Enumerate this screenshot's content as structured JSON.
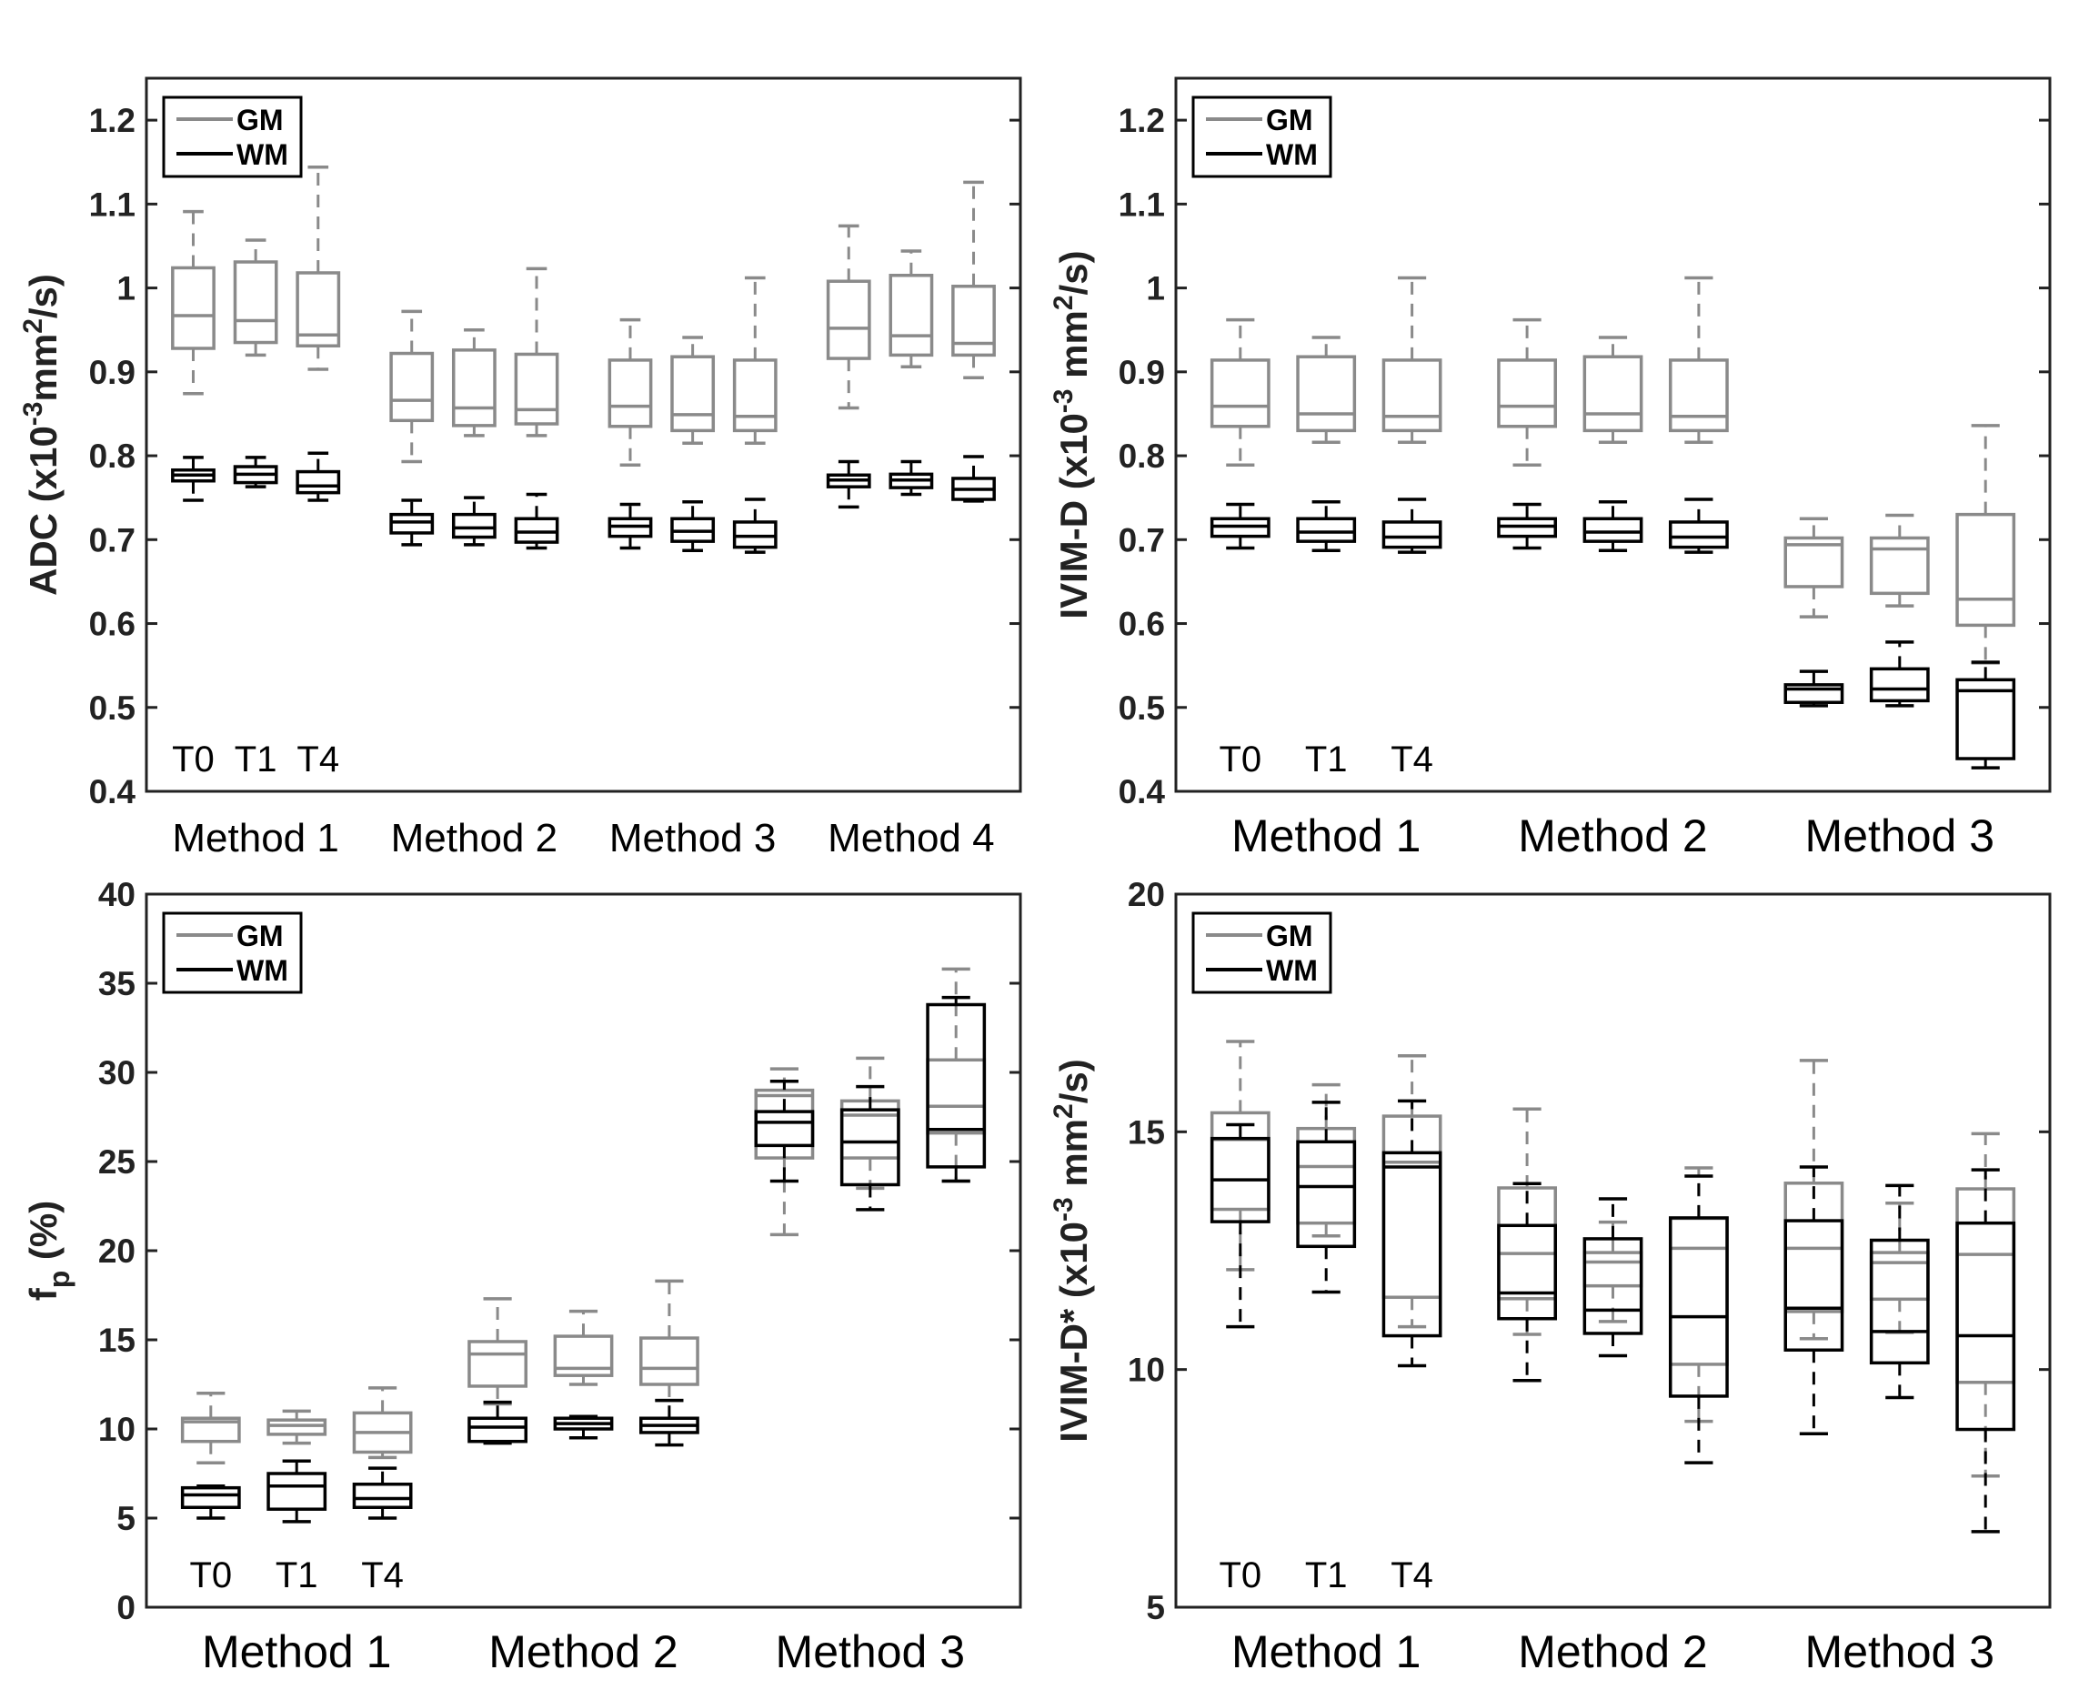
{
  "colors": {
    "GM": "#8a8a8a",
    "WM": "#000000",
    "axis": "#222222"
  },
  "chart_data": [
    {
      "type": "box",
      "ylabel": {
        "main": "ADC (x10",
        "sup1": "-3",
        "mid": "mm",
        "sup2": "2",
        "end": "/s)"
      },
      "ylim": [
        0.4,
        1.25
      ],
      "yticks": [
        0.4,
        0.5,
        0.6,
        0.7,
        0.8,
        0.9,
        1,
        1.1,
        1.2
      ],
      "ytick_labels": [
        "0.4",
        "0.5",
        "0.6",
        "0.7",
        "0.8",
        "0.9",
        "1",
        "1.1",
        "1.2"
      ],
      "categories": [
        "Method 1",
        "Method 2",
        "Method 3",
        "Method 4"
      ],
      "timepoints": [
        "T0",
        "T1",
        "T4"
      ],
      "legend": {
        "position": "top-left",
        "entries": [
          "GM",
          "WM"
        ]
      },
      "series": [
        {
          "name": "GM",
          "boxes": [
            [
              [
                0.874,
                0.928,
                0.967,
                1.024,
                1.091
              ],
              [
                0.92,
                0.935,
                0.961,
                1.031,
                1.057
              ],
              [
                0.903,
                0.931,
                0.944,
                1.018,
                1.144
              ]
            ],
            [
              [
                0.793,
                0.842,
                0.866,
                0.922,
                0.972
              ],
              [
                0.824,
                0.836,
                0.857,
                0.926,
                0.95
              ],
              [
                0.824,
                0.838,
                0.855,
                0.921,
                1.023
              ]
            ],
            [
              [
                0.789,
                0.835,
                0.859,
                0.914,
                0.962
              ],
              [
                0.815,
                0.83,
                0.849,
                0.918,
                0.941
              ],
              [
                0.815,
                0.83,
                0.847,
                0.914,
                1.012
              ]
            ],
            [
              [
                0.857,
                0.916,
                0.952,
                1.008,
                1.074
              ],
              [
                0.906,
                0.92,
                0.943,
                1.015,
                1.044
              ],
              [
                0.893,
                0.92,
                0.934,
                1.002,
                1.126
              ]
            ]
          ]
        },
        {
          "name": "WM",
          "boxes": [
            [
              [
                0.747,
                0.77,
                0.777,
                0.783,
                0.798
              ],
              [
                0.763,
                0.768,
                0.778,
                0.787,
                0.798
              ],
              [
                0.747,
                0.756,
                0.764,
                0.781,
                0.803
              ]
            ],
            [
              [
                0.694,
                0.708,
                0.721,
                0.73,
                0.747
              ],
              [
                0.694,
                0.703,
                0.714,
                0.73,
                0.75
              ],
              [
                0.69,
                0.697,
                0.709,
                0.725,
                0.754
              ]
            ],
            [
              [
                0.69,
                0.704,
                0.716,
                0.725,
                0.742
              ],
              [
                0.687,
                0.698,
                0.71,
                0.725,
                0.745
              ],
              [
                0.685,
                0.691,
                0.704,
                0.721,
                0.748
              ]
            ],
            [
              [
                0.739,
                0.763,
                0.771,
                0.777,
                0.793
              ],
              [
                0.754,
                0.762,
                0.771,
                0.778,
                0.793
              ],
              [
                0.746,
                0.748,
                0.76,
                0.773,
                0.799
              ]
            ]
          ]
        }
      ]
    },
    {
      "type": "box",
      "ylabel": {
        "main": "IVIM-D (x10",
        "sup1": "-3",
        "mid": " mm",
        "sup2": "2",
        "end": "/s)"
      },
      "ylim": [
        0.4,
        1.25
      ],
      "yticks": [
        0.4,
        0.5,
        0.6,
        0.7,
        0.8,
        0.9,
        1,
        1.1,
        1.2
      ],
      "ytick_labels": [
        "0.4",
        "0.5",
        "0.6",
        "0.7",
        "0.8",
        "0.9",
        "1",
        "1.1",
        "1.2"
      ],
      "categories": [
        "Method 1",
        "Method 2",
        "Method 3"
      ],
      "timepoints": [
        "T0",
        "T1",
        "T4"
      ],
      "legend": {
        "position": "top-left",
        "entries": [
          "GM",
          "WM"
        ]
      },
      "series": [
        {
          "name": "GM",
          "boxes": [
            [
              [
                0.789,
                0.835,
                0.859,
                0.914,
                0.962
              ],
              [
                0.816,
                0.83,
                0.85,
                0.918,
                0.941
              ],
              [
                0.816,
                0.83,
                0.847,
                0.914,
                1.012
              ]
            ],
            [
              [
                0.789,
                0.835,
                0.859,
                0.914,
                0.962
              ],
              [
                0.816,
                0.83,
                0.85,
                0.918,
                0.941
              ],
              [
                0.816,
                0.83,
                0.847,
                0.914,
                1.012
              ]
            ],
            [
              [
                0.608,
                0.644,
                0.694,
                0.702,
                0.725
              ],
              [
                0.621,
                0.636,
                0.689,
                0.702,
                0.729
              ],
              [
                0.553,
                0.598,
                0.629,
                0.73,
                0.836
              ]
            ]
          ]
        },
        {
          "name": "WM",
          "boxes": [
            [
              [
                0.69,
                0.704,
                0.716,
                0.725,
                0.742
              ],
              [
                0.687,
                0.698,
                0.709,
                0.725,
                0.745
              ],
              [
                0.685,
                0.691,
                0.703,
                0.721,
                0.748
              ]
            ],
            [
              [
                0.69,
                0.704,
                0.716,
                0.725,
                0.742
              ],
              [
                0.687,
                0.698,
                0.709,
                0.725,
                0.745
              ],
              [
                0.685,
                0.691,
                0.703,
                0.721,
                0.748
              ]
            ],
            [
              [
                0.502,
                0.506,
                0.522,
                0.527,
                0.543
              ],
              [
                0.502,
                0.508,
                0.522,
                0.546,
                0.578
              ],
              [
                0.428,
                0.439,
                0.52,
                0.533,
                0.554
              ]
            ]
          ]
        }
      ]
    },
    {
      "type": "box",
      "ylabel": {
        "main": "f",
        "sub": "p",
        "end": " (%)"
      },
      "ylim": [
        0,
        40
      ],
      "yticks": [
        0,
        5,
        10,
        15,
        20,
        25,
        30,
        35,
        40
      ],
      "ytick_labels": [
        "0",
        "5",
        "10",
        "15",
        "20",
        "25",
        "30",
        "35",
        "40"
      ],
      "categories": [
        "Method 1",
        "Method 2",
        "Method 3"
      ],
      "timepoints": [
        "T0",
        "T1",
        "T4"
      ],
      "legend": {
        "position": "top-left",
        "entries": [
          "GM",
          "WM"
        ]
      },
      "series": [
        {
          "name": "GM",
          "boxes": [
            [
              [
                8.1,
                9.3,
                10.4,
                10.6,
                12.0
              ],
              [
                9.2,
                9.7,
                10.2,
                10.5,
                11.0
              ],
              [
                8.4,
                8.7,
                9.8,
                10.9,
                12.3
              ]
            ],
            [
              [
                11.4,
                12.4,
                14.2,
                14.9,
                17.3
              ],
              [
                12.5,
                13.0,
                13.4,
                15.2,
                16.6
              ],
              [
                11.6,
                12.5,
                13.4,
                15.1,
                18.3
              ]
            ],
            [
              [
                20.9,
                25.2,
                28.7,
                29.0,
                30.2
              ],
              [
                23.5,
                25.2,
                27.6,
                28.4,
                30.8
              ],
              [
                23.9,
                26.6,
                28.1,
                30.7,
                35.8
              ]
            ]
          ]
        },
        {
          "name": "WM",
          "boxes": [
            [
              [
                5.0,
                5.6,
                6.3,
                6.7,
                6.8
              ],
              [
                4.8,
                5.5,
                6.8,
                7.5,
                8.2
              ],
              [
                5.0,
                5.6,
                6.1,
                6.9,
                7.8
              ]
            ],
            [
              [
                9.2,
                9.3,
                10.1,
                10.6,
                11.5
              ],
              [
                9.5,
                10.0,
                10.3,
                10.6,
                10.7
              ],
              [
                9.1,
                9.8,
                10.2,
                10.6,
                11.6
              ]
            ],
            [
              [
                23.9,
                25.9,
                27.2,
                27.8,
                29.5
              ],
              [
                22.3,
                23.7,
                26.1,
                27.9,
                29.2
              ],
              [
                23.9,
                24.7,
                26.8,
                33.8,
                34.2
              ]
            ]
          ]
        }
      ]
    },
    {
      "type": "box",
      "ylabel": {
        "main": "IVIM-D* (x10",
        "sup1": "-3",
        "mid": " mm",
        "sup2": "2",
        "end": "/s)"
      },
      "ylim": [
        5,
        20
      ],
      "yticks": [
        5,
        10,
        15,
        20
      ],
      "ytick_labels": [
        "5",
        "10",
        "15",
        "20"
      ],
      "categories": [
        "Method 1",
        "Method 2",
        "Method 3"
      ],
      "timepoints": [
        "T0",
        "T1",
        "T4"
      ],
      "legend": {
        "position": "top-left",
        "entries": [
          "GM",
          "WM"
        ]
      },
      "series": [
        {
          "name": "GM",
          "boxes": [
            [
              [
                12.1,
                13.37,
                14.84,
                15.4,
                16.9
              ],
              [
                12.81,
                13.08,
                14.27,
                15.07,
                15.99
              ],
              [
                10.9,
                11.52,
                14.36,
                15.33,
                16.6
              ]
            ],
            [
              [
                10.74,
                11.49,
                12.44,
                13.82,
                15.48
              ],
              [
                11.01,
                11.76,
                12.26,
                12.46,
                13.1
              ],
              [
                8.91,
                10.11,
                12.55,
                13.18,
                14.24
              ]
            ],
            [
              [
                10.65,
                11.22,
                12.55,
                13.92,
                16.5
              ],
              [
                10.78,
                11.48,
                12.25,
                12.46,
                13.5
              ],
              [
                7.76,
                9.73,
                12.42,
                13.8,
                14.96
              ]
            ]
          ]
        },
        {
          "name": "WM",
          "boxes": [
            [
              [
                10.9,
                13.11,
                13.99,
                14.86,
                15.15
              ],
              [
                11.63,
                12.59,
                13.85,
                14.79,
                15.62
              ],
              [
                10.08,
                10.71,
                14.26,
                14.56,
                15.65
              ]
            ],
            [
              [
                9.77,
                11.07,
                11.61,
                13.03,
                13.91
              ],
              [
                10.29,
                10.76,
                11.25,
                12.75,
                13.59
              ],
              [
                8.04,
                9.44,
                11.11,
                13.19,
                14.07
              ]
            ],
            [
              [
                8.65,
                10.41,
                11.29,
                13.13,
                14.26
              ],
              [
                9.41,
                10.14,
                10.8,
                12.72,
                13.87
              ],
              [
                6.59,
                8.74,
                10.71,
                13.08,
                14.2
              ]
            ]
          ]
        }
      ]
    }
  ]
}
